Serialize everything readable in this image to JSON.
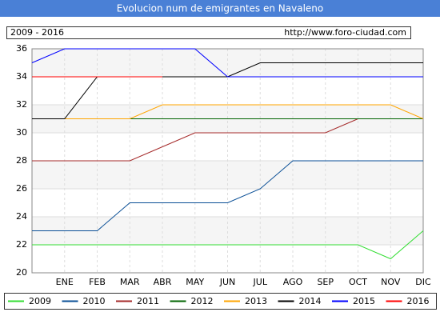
{
  "chart_data": {
    "type": "line",
    "title": "Evolucion num de emigrantes en Navaleno",
    "subtitle": "2009 - 2016",
    "source": "http://www.foro-ciudad.com",
    "categories": [
      null,
      "ENE",
      "FEB",
      "MAR",
      "ABR",
      "MAY",
      "JUN",
      "JUL",
      "AGO",
      "SEP",
      "OCT",
      "NOV",
      "DIC"
    ],
    "series": [
      {
        "name": "2009",
        "color": "#33dd33",
        "values": [
          22,
          22,
          22,
          22,
          22,
          22,
          22,
          22,
          22,
          22,
          22,
          21,
          23
        ]
      },
      {
        "name": "2010",
        "color": "#0a4f96",
        "values": [
          23,
          23,
          23,
          25,
          25,
          25,
          25,
          26,
          28,
          28,
          28,
          28,
          28
        ]
      },
      {
        "name": "2011",
        "color": "#a52a2a",
        "values": [
          28,
          28,
          28,
          28,
          29,
          30,
          30,
          30,
          30,
          30,
          31,
          null,
          null
        ]
      },
      {
        "name": "2012",
        "color": "#006400",
        "values": [
          31,
          31,
          31,
          31,
          31,
          31,
          31,
          31,
          31,
          31,
          31,
          31,
          31
        ]
      },
      {
        "name": "2013",
        "color": "#ffa500",
        "values": [
          31,
          31,
          31,
          31,
          32,
          32,
          32,
          32,
          32,
          32,
          32,
          32,
          31
        ]
      },
      {
        "name": "2014",
        "color": "#000000",
        "values": [
          31,
          31,
          34,
          34,
          34,
          34,
          34,
          35,
          35,
          35,
          35,
          35,
          35
        ]
      },
      {
        "name": "2015",
        "color": "#0000ff",
        "values": [
          35,
          36,
          36,
          36,
          36,
          36,
          34,
          34,
          34,
          34,
          34,
          34,
          34
        ]
      },
      {
        "name": "2016",
        "color": "#ff0000",
        "values": [
          34,
          34,
          34,
          34,
          34,
          null,
          null,
          null,
          null,
          null,
          null,
          null,
          null
        ]
      }
    ],
    "ylim": [
      20,
      36
    ],
    "yticks": [
      20,
      22,
      24,
      26,
      28,
      30,
      32,
      34,
      36
    ],
    "grid": true,
    "legend": "bottom"
  }
}
